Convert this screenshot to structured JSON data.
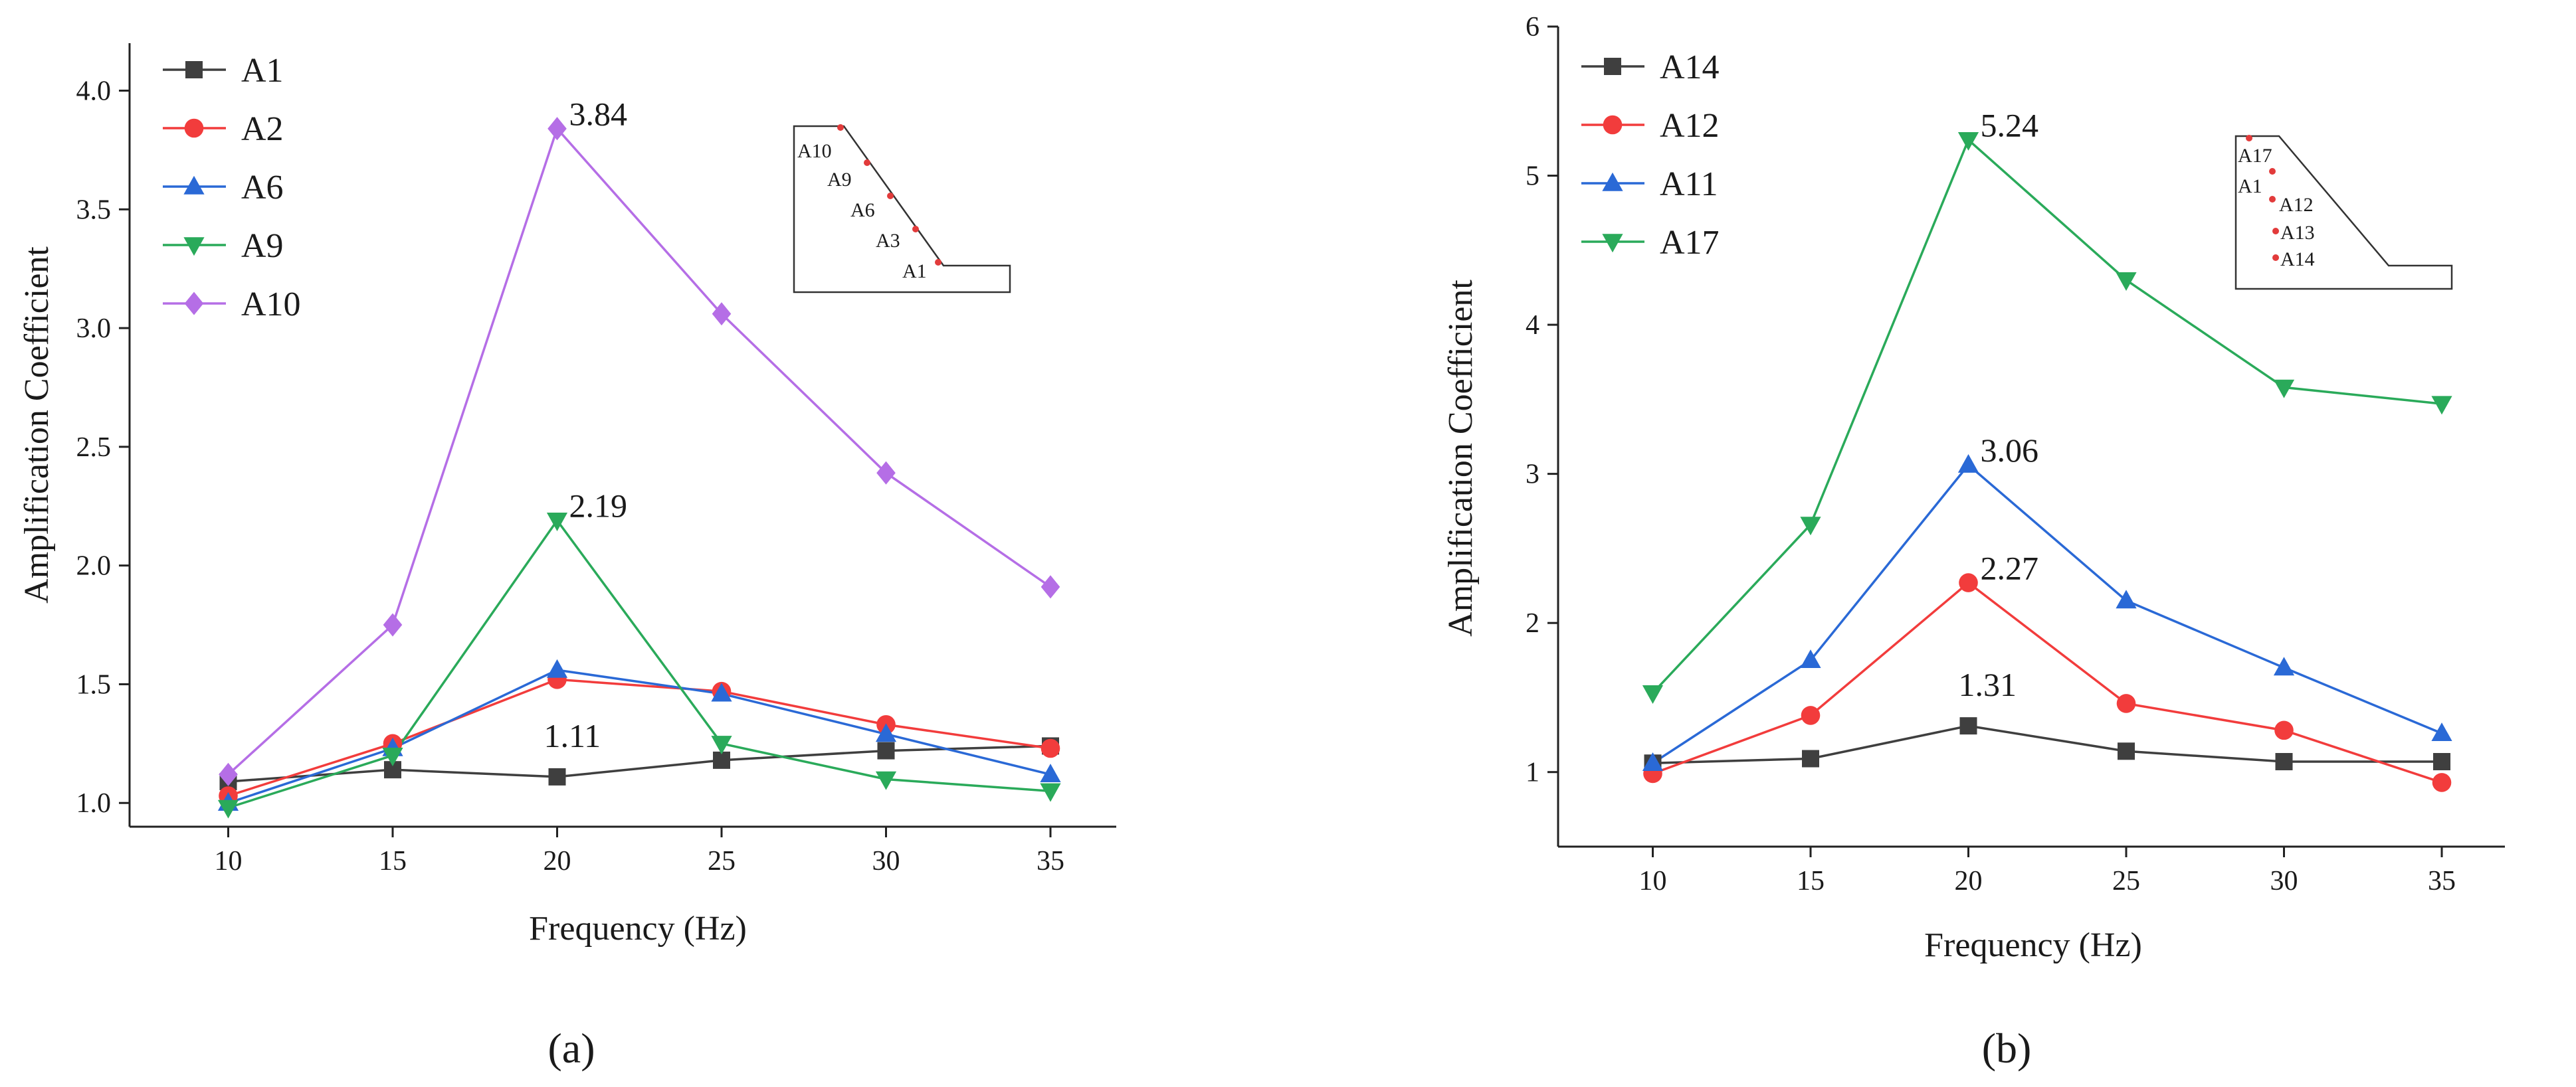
{
  "chart_data": [
    {
      "type": "line",
      "panel_label": "(a)",
      "xlabel": "Frequency (Hz)",
      "ylabel": "Amplification Coefficient",
      "x": [
        10,
        15,
        20,
        25,
        30,
        35
      ],
      "xlim": [
        7,
        37
      ],
      "ylim": [
        0.9,
        4.2
      ],
      "xticks": [
        "10",
        "15",
        "20",
        "25",
        "30",
        "35"
      ],
      "yticks": [
        "1.0",
        "1.5",
        "2.0",
        "2.5",
        "3.0",
        "3.5",
        "4.0"
      ],
      "legend_position": "top-left",
      "series": [
        {
          "name": "A1",
          "color": "#3f3f3f",
          "marker": "square",
          "values": [
            1.09,
            1.14,
            1.11,
            1.18,
            1.22,
            1.24
          ]
        },
        {
          "name": "A2",
          "color": "#f23c3c",
          "marker": "circle",
          "values": [
            1.03,
            1.25,
            1.52,
            1.47,
            1.33,
            1.23
          ]
        },
        {
          "name": "A6",
          "color": "#2a69d6",
          "marker": "triangle-up",
          "values": [
            1.0,
            1.23,
            1.56,
            1.46,
            1.29,
            1.12
          ]
        },
        {
          "name": "A9",
          "color": "#2aaa5a",
          "marker": "triangle-down",
          "values": [
            0.98,
            1.2,
            2.19,
            1.25,
            1.1,
            1.05
          ]
        },
        {
          "name": "A10",
          "color": "#b56ee6",
          "marker": "diamond",
          "values": [
            1.12,
            1.75,
            3.84,
            3.06,
            2.39,
            1.91
          ]
        }
      ],
      "annotations": [
        {
          "text": "3.84",
          "x": 20,
          "y": 3.84
        },
        {
          "text": "2.19",
          "x": 20,
          "y": 2.19
        },
        {
          "text": "1.11",
          "x": 20,
          "y": 1.11
        }
      ],
      "inset_labels": [
        "A10",
        "A9",
        "A6",
        "A3",
        "A1"
      ]
    },
    {
      "type": "line",
      "panel_label": "(b)",
      "xlabel": "Frequency (Hz)",
      "ylabel": "Amplification Coefficient",
      "x": [
        10,
        15,
        20,
        25,
        30,
        35
      ],
      "xlim": [
        7,
        37
      ],
      "ylim": [
        0.5,
        6
      ],
      "xticks": [
        "10",
        "15",
        "20",
        "25",
        "30",
        "35"
      ],
      "yticks": [
        "1",
        "2",
        "3",
        "4",
        "5",
        "6"
      ],
      "legend_position": "top-left",
      "series": [
        {
          "name": "A14",
          "color": "#3f3f3f",
          "marker": "square",
          "values": [
            1.06,
            1.09,
            1.31,
            1.14,
            1.07,
            1.07
          ]
        },
        {
          "name": "A12",
          "color": "#f23c3c",
          "marker": "circle",
          "values": [
            0.99,
            1.38,
            2.27,
            1.46,
            1.28,
            0.93
          ]
        },
        {
          "name": "A11",
          "color": "#2a69d6",
          "marker": "triangle-up",
          "values": [
            1.06,
            1.75,
            3.06,
            2.15,
            1.7,
            1.26
          ]
        },
        {
          "name": "A17",
          "color": "#2aaa5a",
          "marker": "triangle-down",
          "values": [
            1.53,
            2.66,
            5.24,
            4.3,
            3.58,
            3.47
          ]
        }
      ],
      "annotations": [
        {
          "text": "5.24",
          "x": 20,
          "y": 5.24
        },
        {
          "text": "3.06",
          "x": 20,
          "y": 3.06
        },
        {
          "text": "2.27",
          "x": 20,
          "y": 2.27
        },
        {
          "text": "1.31",
          "x": 20,
          "y": 1.31
        }
      ],
      "inset_labels": [
        "A17",
        "A1",
        "A12",
        "A13",
        "A14"
      ]
    }
  ]
}
